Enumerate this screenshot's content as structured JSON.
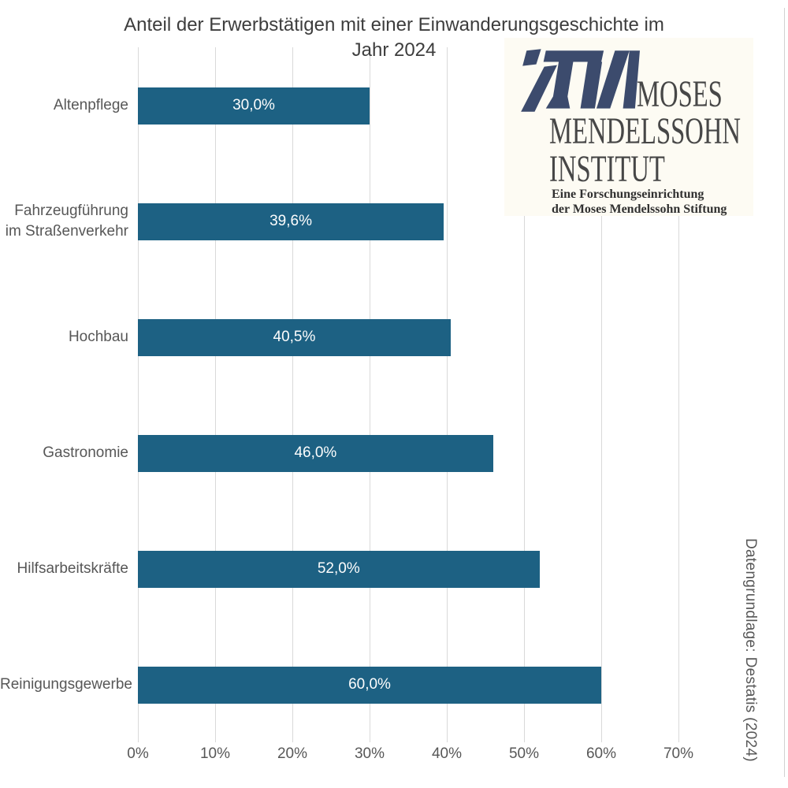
{
  "title_lines": [
    "Anteil der Erwerbstätigen mit einer Einwanderungsgeschichte im",
    "Jahr 2024"
  ],
  "logo": {
    "line1": "MOSES",
    "line2": "MENDELSSOHN",
    "line3": "INSTITUT",
    "subline1": "Eine Forschungseinrichtung",
    "subline2": "der Moses Mendelssohn Stiftung"
  },
  "colors": {
    "bar": "#1d6183",
    "grid": "#d9d9d9",
    "axis_text": "#575757",
    "title_text": "#3d3d3d",
    "value_text": "#fdfdfd",
    "logo_navy": "#3c4b6d",
    "logo_background": "#fdfbf3"
  },
  "chart_data": {
    "type": "bar",
    "orientation": "horizontal",
    "title": "Anteil der Erwerbstätigen mit einer Einwanderungsgeschichte im Jahr 2024",
    "categories": [
      "Altenpflege",
      "Fahrzeugführung im Straßenverkehr",
      "Hochbau",
      "Gastronomie",
      "Hilfsarbeitskräfte",
      "Reinigungsgewerbe"
    ],
    "values": [
      30.0,
      39.6,
      40.5,
      46.0,
      52.0,
      60.0
    ],
    "value_labels": [
      "30,0%",
      "39,6%",
      "40,5%",
      "46,0%",
      "52,0%",
      "60,0%"
    ],
    "xlim": [
      0,
      80
    ],
    "x_ticks": [
      0,
      10,
      20,
      30,
      40,
      50,
      60,
      70
    ],
    "x_tick_labels": [
      "0%",
      "10%",
      "20%",
      "30%",
      "40%",
      "50%",
      "60%",
      "70%"
    ],
    "grid": true,
    "legend": false,
    "source": "Datengrundlage: Destatis (2024)"
  }
}
